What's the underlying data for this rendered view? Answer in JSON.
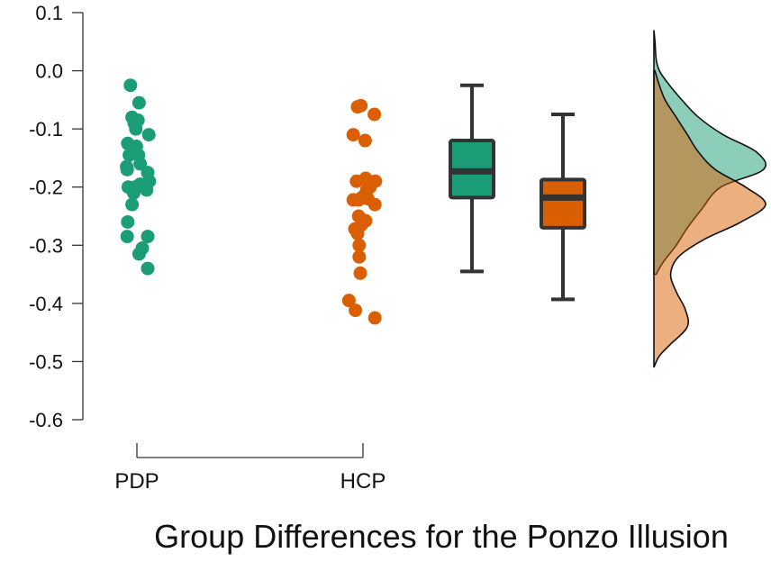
{
  "chart_data": {
    "type": "scatter",
    "title": "",
    "xlabel": "Group Differences for the Ponzo Illusion",
    "ylabel": "",
    "ylim": [
      -0.6,
      0.1
    ],
    "yticks": [
      "0.1",
      "0.0",
      "-0.1",
      "-0.2",
      "-0.3",
      "-0.4",
      "-0.5",
      "-0.6"
    ],
    "categories": [
      "PDP",
      "HCP"
    ],
    "grid": false,
    "legend": "none",
    "series": [
      {
        "name": "PDP",
        "color": "#1b9e77",
        "points": [
          {
            "x": -0.12,
            "y": -0.025
          },
          {
            "x": 0.04,
            "y": -0.055
          },
          {
            "x": -0.09,
            "y": -0.08
          },
          {
            "x": 0.02,
            "y": -0.085
          },
          {
            "x": -0.05,
            "y": -0.09
          },
          {
            "x": -0.02,
            "y": -0.1
          },
          {
            "x": 0.22,
            "y": -0.11
          },
          {
            "x": -0.17,
            "y": -0.125
          },
          {
            "x": -0.01,
            "y": -0.13
          },
          {
            "x": 0.03,
            "y": -0.145
          },
          {
            "x": -0.14,
            "y": -0.145
          },
          {
            "x": 0.06,
            "y": -0.16
          },
          {
            "x": -0.19,
            "y": -0.165
          },
          {
            "x": -0.18,
            "y": -0.17
          },
          {
            "x": 0.2,
            "y": -0.175
          },
          {
            "x": 0.23,
            "y": -0.19
          },
          {
            "x": 0.06,
            "y": -0.195
          },
          {
            "x": -0.16,
            "y": -0.2
          },
          {
            "x": -0.03,
            "y": -0.2
          },
          {
            "x": 0.13,
            "y": -0.2
          },
          {
            "x": 0.18,
            "y": -0.205
          },
          {
            "x": -0.06,
            "y": -0.21
          },
          {
            "x": -0.09,
            "y": -0.23
          },
          {
            "x": -0.17,
            "y": -0.26
          },
          {
            "x": -0.18,
            "y": -0.285
          },
          {
            "x": 0.2,
            "y": -0.285
          },
          {
            "x": 0.1,
            "y": -0.305
          },
          {
            "x": 0.04,
            "y": -0.315
          },
          {
            "x": 0.2,
            "y": -0.34
          }
        ],
        "box": {
          "min": -0.345,
          "q1": -0.218,
          "median": -0.173,
          "q3": -0.12,
          "max": -0.025
        }
      },
      {
        "name": "HCP",
        "color": "#d95f02",
        "points": [
          {
            "x": -0.04,
            "y": -0.06
          },
          {
            "x": -0.1,
            "y": -0.062
          },
          {
            "x": 0.21,
            "y": -0.075
          },
          {
            "x": -0.18,
            "y": -0.11
          },
          {
            "x": 0.04,
            "y": -0.12
          },
          {
            "x": 0.05,
            "y": -0.185
          },
          {
            "x": 0.1,
            "y": -0.19
          },
          {
            "x": -0.12,
            "y": -0.19
          },
          {
            "x": 0.23,
            "y": -0.19
          },
          {
            "x": 0.13,
            "y": -0.2
          },
          {
            "x": 0.07,
            "y": -0.205
          },
          {
            "x": 0.02,
            "y": -0.215
          },
          {
            "x": -0.02,
            "y": -0.218
          },
          {
            "x": 0.09,
            "y": -0.22
          },
          {
            "x": -0.08,
            "y": -0.222
          },
          {
            "x": -0.18,
            "y": -0.222
          },
          {
            "x": 0.22,
            "y": -0.23
          },
          {
            "x": -0.08,
            "y": -0.25
          },
          {
            "x": 0.05,
            "y": -0.258
          },
          {
            "x": -0.03,
            "y": -0.265
          },
          {
            "x": -0.15,
            "y": -0.272
          },
          {
            "x": -0.1,
            "y": -0.28
          },
          {
            "x": -0.07,
            "y": -0.3
          },
          {
            "x": -0.07,
            "y": -0.32
          },
          {
            "x": -0.05,
            "y": -0.348
          },
          {
            "x": -0.26,
            "y": -0.395
          },
          {
            "x": -0.14,
            "y": -0.412
          },
          {
            "x": 0.22,
            "y": -0.425
          }
        ],
        "box": {
          "min": -0.393,
          "q1": -0.27,
          "median": -0.218,
          "q3": -0.187,
          "max": -0.075
        }
      }
    ],
    "density": [
      {
        "series": "PDP",
        "color": "#1b9e77",
        "y": [
          -0.35,
          -0.33,
          -0.3,
          -0.27,
          -0.24,
          -0.2,
          -0.17,
          -0.14,
          -0.11,
          -0.08,
          -0.05,
          -0.02,
          0.0,
          0.02,
          0.05,
          0.07
        ],
        "d": [
          0.02,
          0.08,
          0.2,
          0.3,
          0.42,
          0.6,
          0.98,
          0.92,
          0.62,
          0.4,
          0.25,
          0.12,
          0.05,
          0.02,
          0.01,
          0.0
        ]
      },
      {
        "series": "HCP",
        "color": "#d95f02",
        "y": [
          -0.51,
          -0.49,
          -0.47,
          -0.44,
          -0.41,
          -0.38,
          -0.35,
          -0.32,
          -0.29,
          -0.26,
          -0.23,
          -0.2,
          -0.17,
          -0.14,
          -0.11,
          -0.08,
          -0.05,
          -0.02,
          0.0
        ],
        "d": [
          0.0,
          0.05,
          0.15,
          0.3,
          0.28,
          0.2,
          0.15,
          0.22,
          0.45,
          0.78,
          1.0,
          0.82,
          0.55,
          0.4,
          0.3,
          0.2,
          0.1,
          0.04,
          0.01
        ]
      }
    ]
  }
}
